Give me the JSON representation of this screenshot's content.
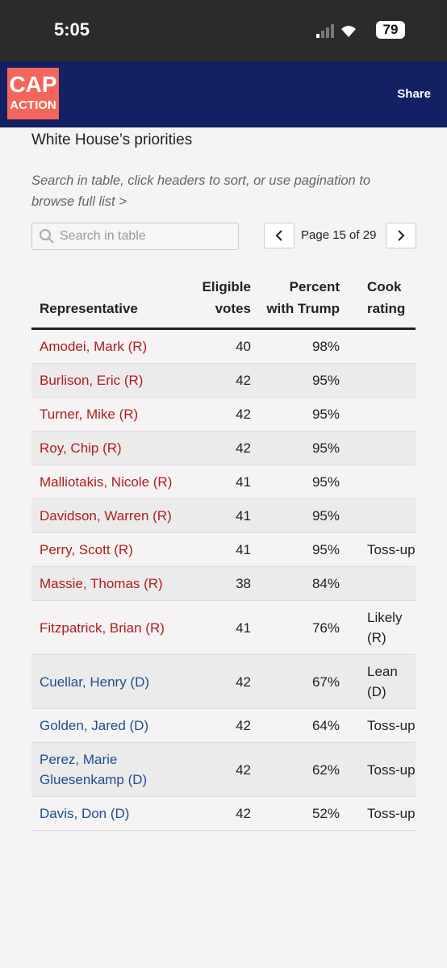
{
  "status_bar": {
    "time": "5:05",
    "battery": "79"
  },
  "header": {
    "logo_top": "CAP",
    "logo_bottom": "ACTION",
    "share": "Share"
  },
  "intro_tail": "White House’s priorities",
  "instructions": "Search in table, click headers to sort, or use pagination to browse full list >",
  "search_placeholder": "Search in table",
  "pagination": "Page 15 of 29",
  "table": {
    "headers": [
      "Representative",
      "Eligible votes",
      "Percent with Trump",
      "Cook rating"
    ],
    "rows": [
      {
        "name": "Amodei, Mark (R)",
        "votes": "40",
        "percent": "98%",
        "color": "#b01c22"
      },
      {
        "name": "Burlison, Eric (R)",
        "votes": "42",
        "percent": "95%",
        "color": "#b01c22"
      },
      {
        "name": "Turner, Mike (R)",
        "votes": "42",
        "percent": "95%",
        "color": "#b01c22"
      },
      {
        "name": "Roy, Chip (R)",
        "votes": "42",
        "percent": "95%",
        "color": "#b01c22"
      },
      {
        "name": "Malliotakis, Nicole (R)",
        "votes": "41",
        "percent": "95%",
        "color": "#b01c22"
      },
      {
        "name": "Davidson, Warren (R)",
        "votes": "41",
        "percent": "95%",
        "color": "#b01c22"
      },
      {
        "name": "Perry, Scott (R)",
        "votes": "41",
        "percent": "95%",
        "cook": "Toss-up",
        "color": "#b01c22"
      },
      {
        "name": "Massie, Thomas (R)",
        "votes": "38",
        "percent": "84%",
        "color": "#b01c22"
      },
      {
        "name": "Fitzpatrick, Brian (R)",
        "votes": "41",
        "percent": "76%",
        "cook": "Likely (R)",
        "color": "#b01c22"
      },
      {
        "name": "Cuellar, Henry (D)",
        "votes": "42",
        "percent": "67%",
        "cook": "Lean (D)",
        "color": "#1c4f8f"
      },
      {
        "name": "Golden, Jared (D)",
        "votes": "42",
        "percent": "64%",
        "cook": "Toss-up",
        "color": "#1c4f8f"
      },
      {
        "name": "Perez, Marie Gluesenkamp (D)",
        "votes": "42",
        "percent": "62%",
        "cook": "Toss-up",
        "color": "#1c4f8f"
      },
      {
        "name": "Davis, Don (D)",
        "votes": "42",
        "percent": "52%",
        "cook": "Toss-up",
        "color": "#1c4f8f"
      }
    ]
  }
}
